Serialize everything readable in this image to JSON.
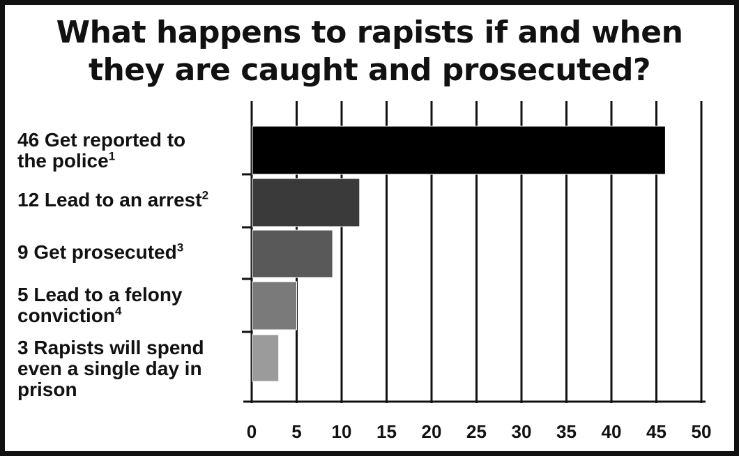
{
  "chart_data": {
    "type": "bar",
    "orientation": "horizontal",
    "title": [
      "What happens to rapists if and when",
      "they are caught and prosecuted?"
    ],
    "categories": [
      {
        "lines": [
          "46 Get reported to",
          "the police"
        ],
        "note": "1"
      },
      {
        "lines": [
          "12 Lead to an arrest"
        ],
        "note": "2"
      },
      {
        "lines": [
          "9 Get prosecuted"
        ],
        "note": "3"
      },
      {
        "lines": [
          "5 Lead to a felony",
          "conviction"
        ],
        "note": "4"
      },
      {
        "lines": [
          "3 Rapists will spend",
          "even a single day in",
          "prison"
        ],
        "note": ""
      }
    ],
    "values": [
      46,
      12,
      9,
      5,
      3
    ],
    "bar_colors": [
      "#000000",
      "#3a3a3a",
      "#595959",
      "#7a7a7a",
      "#9b9b9b"
    ],
    "xlim": [
      0,
      50
    ],
    "xticks": [
      "0",
      "5",
      "10",
      "15",
      "20",
      "25",
      "30",
      "35",
      "40",
      "45",
      "50"
    ],
    "grid": true
  }
}
